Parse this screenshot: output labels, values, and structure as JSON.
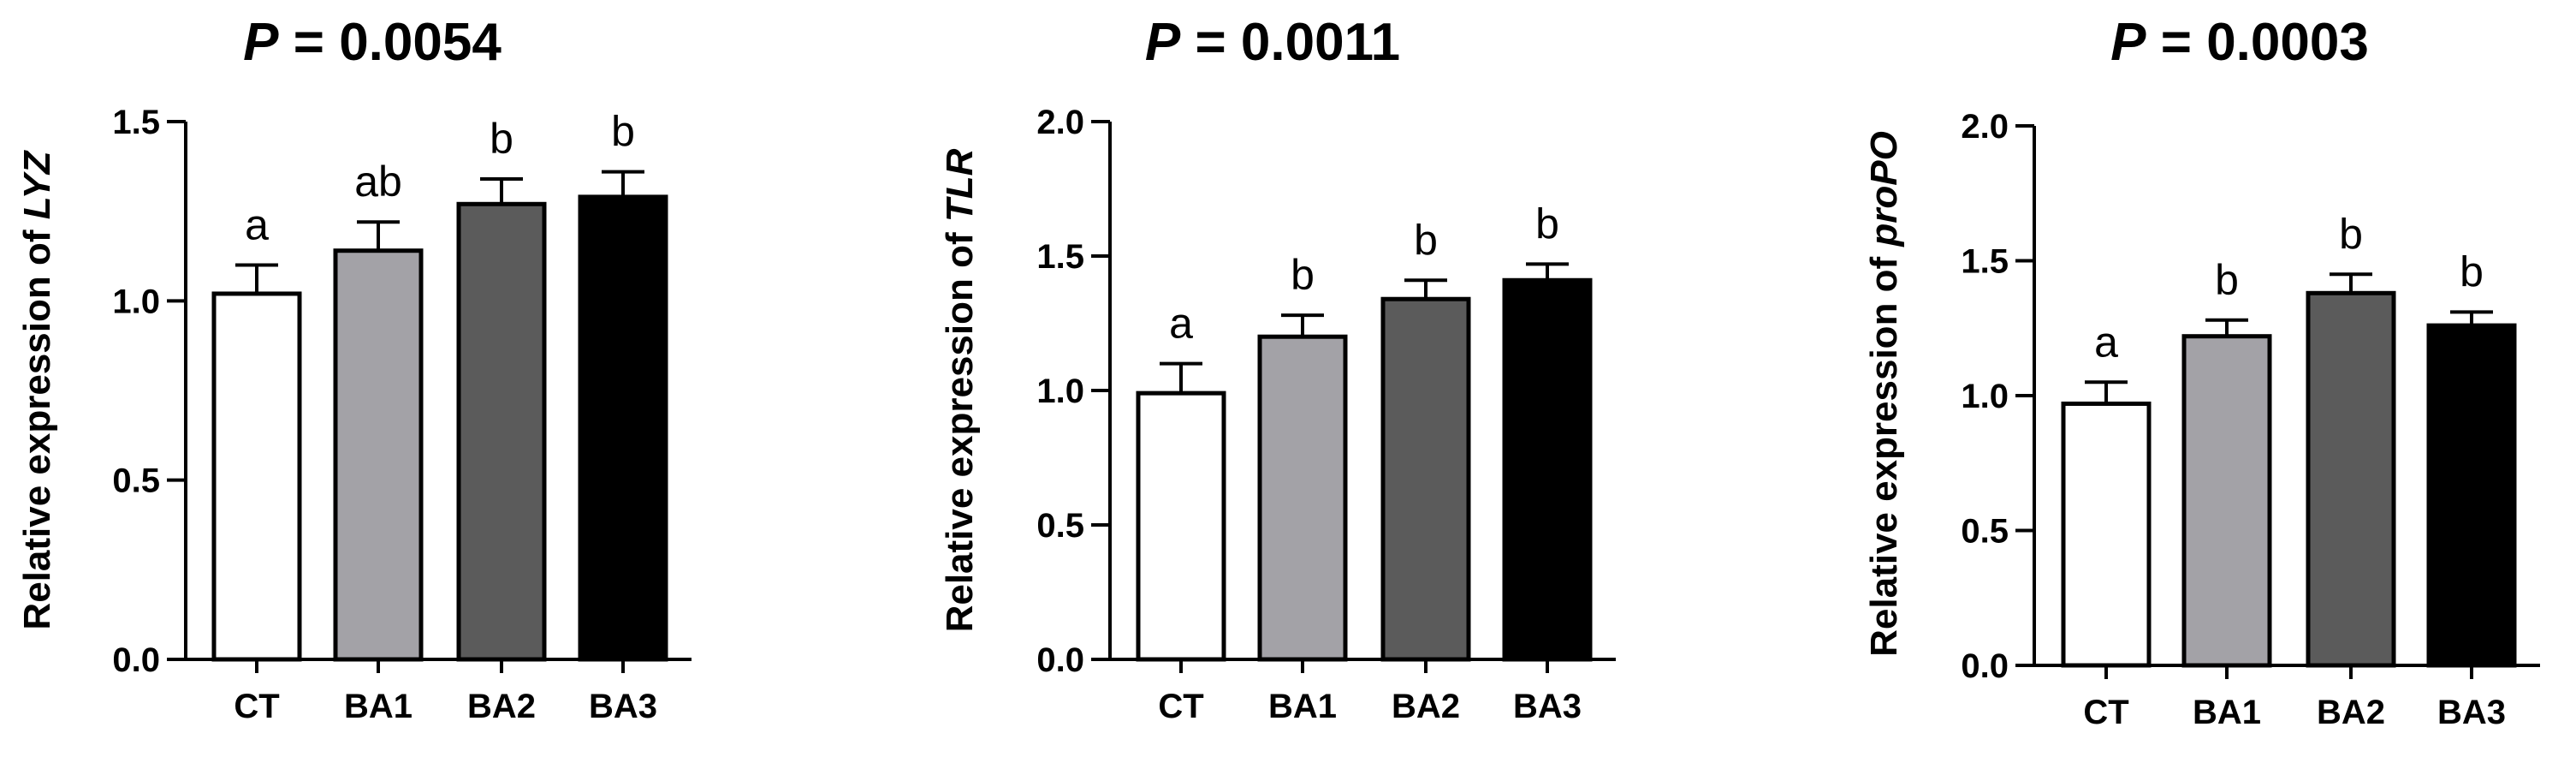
{
  "chart_data": [
    {
      "type": "bar",
      "title": "= 0.0054",
      "title_italic": "P",
      "ylabel": "Relative expression of ",
      "ylabel_gene": "LYZ",
      "categories": [
        "CT",
        "BA1",
        "BA2",
        "BA3"
      ],
      "values": [
        1.02,
        1.14,
        1.27,
        1.29
      ],
      "errors": [
        0.08,
        0.08,
        0.07,
        0.07
      ],
      "letters": [
        "a",
        "ab",
        "b",
        "b"
      ],
      "ylim": [
        0,
        1.5
      ],
      "yticks": [
        "0.0",
        "0.5",
        "1.0",
        "1.5"
      ],
      "ytick_values": [
        0,
        0.5,
        1.0,
        1.5
      ]
    },
    {
      "type": "bar",
      "title": "= 0.0011",
      "title_italic": "P",
      "ylabel": "Relative expression of ",
      "ylabel_gene": "TLR",
      "categories": [
        "CT",
        "BA1",
        "BA2",
        "BA3"
      ],
      "values": [
        0.99,
        1.2,
        1.34,
        1.41
      ],
      "errors": [
        0.11,
        0.08,
        0.07,
        0.06
      ],
      "letters": [
        "a",
        "b",
        "b",
        "b"
      ],
      "ylim": [
        0,
        2.0
      ],
      "yticks": [
        "0.0",
        "0.5",
        "1.0",
        "1.5",
        "2.0"
      ],
      "ytick_values": [
        0,
        0.5,
        1.0,
        1.5,
        2.0
      ]
    },
    {
      "type": "bar",
      "title": "= 0.0003",
      "title_italic": "P",
      "ylabel": "Relative expression of ",
      "ylabel_gene": "proPO",
      "categories": [
        "CT",
        "BA1",
        "BA2",
        "BA3"
      ],
      "values": [
        0.97,
        1.22,
        1.38,
        1.26
      ],
      "errors": [
        0.08,
        0.06,
        0.07,
        0.05
      ],
      "letters": [
        "a",
        "b",
        "b",
        "b"
      ],
      "ylim": [
        0,
        2.0
      ],
      "yticks": [
        "0.0",
        "0.5",
        "1.0",
        "1.5",
        "2.0"
      ],
      "ytick_values": [
        0,
        0.5,
        1.0,
        1.5,
        2.0
      ]
    }
  ],
  "colors": {
    "bars": [
      "#ffffff",
      "#a3a2a7",
      "#5b5b5b",
      "#000000"
    ],
    "axis": "#000000"
  }
}
